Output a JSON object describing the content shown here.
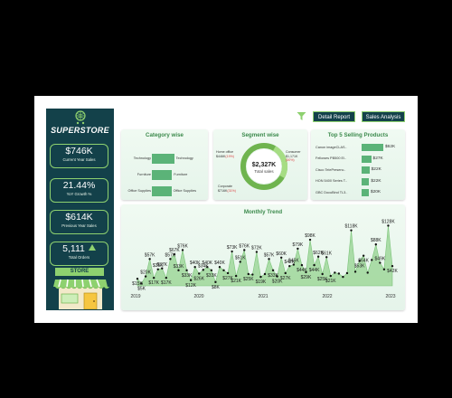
{
  "brand": {
    "name": "SUPERSTORE"
  },
  "kpis": {
    "current_sales": {
      "value": "$746K",
      "label": "Current Year Sales"
    },
    "yoy_growth": {
      "value": "21.44%",
      "label": "YoY Growth %"
    },
    "previous_sales": {
      "value": "$614K",
      "label": "Previous Year Sales"
    },
    "total_orders": {
      "value": "5,111",
      "label": "Total Orders"
    }
  },
  "store_label": "STORE",
  "toolbar": {
    "filter_icon": "funnel-icon",
    "detail_report": "Detail Report",
    "sales_analysis": "Sales Analysis"
  },
  "colors": {
    "dark": "#13414a",
    "accent": "#8ed16f",
    "bar": "#5bb378",
    "title": "#3b8a4c"
  },
  "category": {
    "title": "Category wise",
    "items": [
      {
        "name": "Technology",
        "fill": 0.82
      },
      {
        "name": "Furniture",
        "fill": 0.74
      },
      {
        "name": "Office Supplies",
        "fill": 0.72
      }
    ]
  },
  "segment": {
    "title": "Segment wise",
    "total_value": "$2,327K",
    "total_label": "Total sales",
    "items": [
      {
        "name": "Home office",
        "value": "$446K",
        "pct": "(19%)"
      },
      {
        "name": "Consumer",
        "value": "$1,171K",
        "pct": "(50%)"
      },
      {
        "name": "Corporate",
        "value": "$716K",
        "pct": "(31%)"
      }
    ]
  },
  "top_products": {
    "title": "Top 5 Selling Products",
    "items": [
      {
        "name": "Canon imageCLAS..",
        "value": "$62K",
        "fill": 1.0
      },
      {
        "name": "Fellowes PB500 El..",
        "value": "$27K",
        "fill": 0.44
      },
      {
        "name": "Cisco TelePresenc..",
        "value": "$22K",
        "fill": 0.36
      },
      {
        "name": "HON 5400 Series T..",
        "value": "$22K",
        "fill": 0.35
      },
      {
        "name": "GBC DocuBind TL3..",
        "value": "$20K",
        "fill": 0.33
      }
    ]
  },
  "chart_data": {
    "type": "area",
    "title": "Monthly Trend",
    "x_ticks": [
      "2019",
      "2020",
      "2021",
      "2022",
      "2023"
    ],
    "values": [
      15,
      5,
      20,
      57,
      17,
      35,
      37,
      17,
      57,
      67,
      33,
      76,
      33,
      12,
      40,
      26,
      34,
      40,
      33,
      8,
      40,
      33,
      27,
      73,
      21,
      51,
      76,
      25,
      24,
      72,
      19,
      25,
      57,
      33,
      20,
      60,
      27,
      42,
      45,
      79,
      44,
      29,
      98,
      44,
      62,
      25,
      61,
      21,
      28,
      26,
      19,
      27,
      118,
      30,
      53,
      64,
      28,
      55,
      88,
      49,
      35,
      128,
      42
    ],
    "point_labels": [
      {
        "i": 0,
        "text": "$15K",
        "pos": "below"
      },
      {
        "i": 1,
        "text": "$5K",
        "pos": "below"
      },
      {
        "i": 2,
        "text": "$20K",
        "pos": "above"
      },
      {
        "i": 3,
        "text": "$57K",
        "pos": "above"
      },
      {
        "i": 4,
        "text": "$17K",
        "pos": "below"
      },
      {
        "i": 5,
        "text": "$35K",
        "pos": "above"
      },
      {
        "i": 6,
        "text": "$37K",
        "pos": "above"
      },
      {
        "i": 7,
        "text": "$17K",
        "pos": "below"
      },
      {
        "i": 8,
        "text": "$57K",
        "pos": "above"
      },
      {
        "i": 9,
        "text": "$67K",
        "pos": "above"
      },
      {
        "i": 10,
        "text": "$33K",
        "pos": "above"
      },
      {
        "i": 11,
        "text": "$76K",
        "pos": "above"
      },
      {
        "i": 12,
        "text": "$33K",
        "pos": "below"
      },
      {
        "i": 13,
        "text": "$12K",
        "pos": "below"
      },
      {
        "i": 14,
        "text": "$40K",
        "pos": "above"
      },
      {
        "i": 15,
        "text": "$26K",
        "pos": "below"
      },
      {
        "i": 16,
        "text": "$34K",
        "pos": "above"
      },
      {
        "i": 17,
        "text": "$40K",
        "pos": "above"
      },
      {
        "i": 18,
        "text": "$33K",
        "pos": "below"
      },
      {
        "i": 19,
        "text": "$8K",
        "pos": "below"
      },
      {
        "i": 20,
        "text": "$40K",
        "pos": "above"
      },
      {
        "i": 22,
        "text": "$27K",
        "pos": "below"
      },
      {
        "i": 23,
        "text": "$73K",
        "pos": "above"
      },
      {
        "i": 24,
        "text": "$21K",
        "pos": "below"
      },
      {
        "i": 25,
        "text": "$51K",
        "pos": "above"
      },
      {
        "i": 26,
        "text": "$76K",
        "pos": "above"
      },
      {
        "i": 27,
        "text": "$25K",
        "pos": "below"
      },
      {
        "i": 29,
        "text": "$72K",
        "pos": "above"
      },
      {
        "i": 30,
        "text": "$19K",
        "pos": "below"
      },
      {
        "i": 32,
        "text": "$57K",
        "pos": "above"
      },
      {
        "i": 33,
        "text": "$33K",
        "pos": "below"
      },
      {
        "i": 34,
        "text": "$20K",
        "pos": "below"
      },
      {
        "i": 35,
        "text": "$60K",
        "pos": "above"
      },
      {
        "i": 36,
        "text": "$27K",
        "pos": "below"
      },
      {
        "i": 37,
        "text": "$42K",
        "pos": "above"
      },
      {
        "i": 38,
        "text": "$45K",
        "pos": "above"
      },
      {
        "i": 39,
        "text": "$79K",
        "pos": "above"
      },
      {
        "i": 40,
        "text": "$44K",
        "pos": "below"
      },
      {
        "i": 41,
        "text": "$29K",
        "pos": "below"
      },
      {
        "i": 42,
        "text": "$98K",
        "pos": "above"
      },
      {
        "i": 43,
        "text": "$44K",
        "pos": "below"
      },
      {
        "i": 44,
        "text": "$62K",
        "pos": "above"
      },
      {
        "i": 45,
        "text": "$25K",
        "pos": "below"
      },
      {
        "i": 46,
        "text": "$61K",
        "pos": "above"
      },
      {
        "i": 47,
        "text": "$21K",
        "pos": "below"
      },
      {
        "i": 52,
        "text": "$118K",
        "pos": "above"
      },
      {
        "i": 54,
        "text": "$53K",
        "pos": "below"
      },
      {
        "i": 55,
        "text": "$64K",
        "pos": "below"
      },
      {
        "i": 58,
        "text": "$88K",
        "pos": "above"
      },
      {
        "i": 59,
        "text": "$49K",
        "pos": "above"
      },
      {
        "i": 61,
        "text": "$128K",
        "pos": "above"
      },
      {
        "i": 62,
        "text": "$42K",
        "pos": "below"
      }
    ]
  }
}
